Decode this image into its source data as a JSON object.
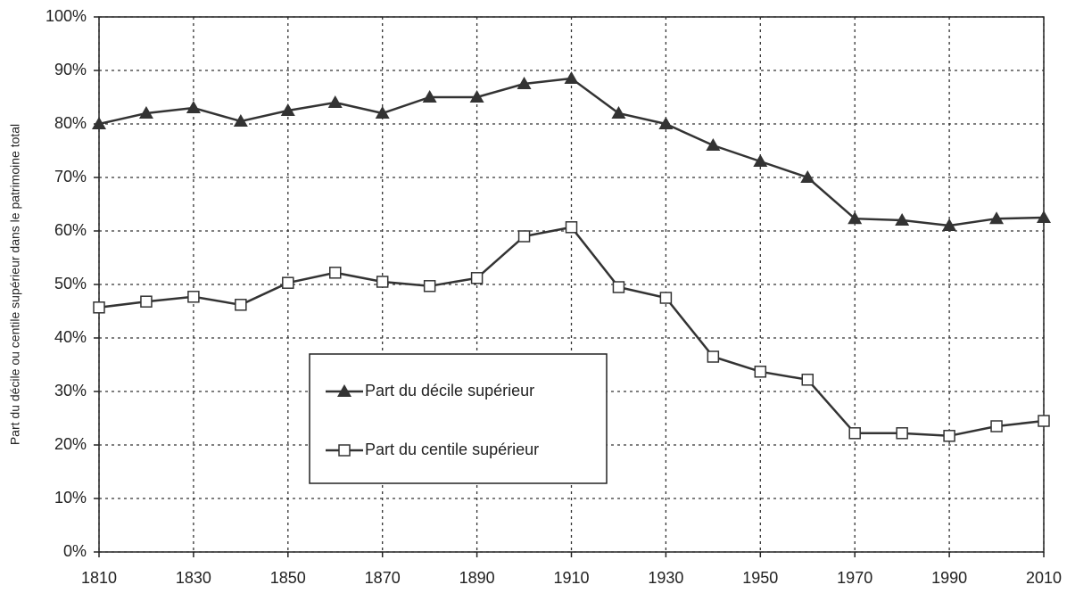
{
  "chart_data": {
    "type": "line",
    "ylabel": "Part du décile ou centile supérieur dans le patrimoine total",
    "x": [
      1810,
      1820,
      1830,
      1840,
      1850,
      1860,
      1870,
      1880,
      1890,
      1900,
      1910,
      1920,
      1930,
      1940,
      1950,
      1960,
      1970,
      1980,
      1990,
      2000,
      2010
    ],
    "series": [
      {
        "name": "Part du décile supérieur",
        "color": "#333333",
        "marker": "triangle",
        "values": [
          80,
          82,
          83,
          80.5,
          82.5,
          84,
          82,
          85,
          85,
          87.5,
          88.5,
          82,
          80,
          76,
          73,
          70,
          62.3,
          62,
          61,
          62.3,
          62.5
        ]
      },
      {
        "name": "Part du centile supérieur",
        "color": "#333333",
        "marker": "square",
        "values": [
          45.7,
          46.8,
          47.7,
          46.2,
          50.3,
          52.2,
          50.5,
          49.7,
          51.2,
          59,
          60.7,
          49.5,
          47.5,
          36.5,
          33.7,
          32.2,
          22.2,
          22.2,
          21.7,
          23.5,
          24.5
        ]
      }
    ],
    "xlim": [
      1810,
      2010
    ],
    "xticks": [
      1810,
      1830,
      1850,
      1870,
      1890,
      1910,
      1930,
      1950,
      1970,
      1990,
      2010
    ],
    "ylim": [
      0,
      100
    ],
    "yticks": [
      {
        "value": 0,
        "label": "0%"
      },
      {
        "value": 10,
        "label": "10%"
      },
      {
        "value": 20,
        "label": "20%"
      },
      {
        "value": 30,
        "label": "30%"
      },
      {
        "value": 40,
        "label": "40%"
      },
      {
        "value": 50,
        "label": "50%"
      },
      {
        "value": 60,
        "label": "60%"
      },
      {
        "value": 70,
        "label": "70%"
      },
      {
        "value": 80,
        "label": "80%"
      },
      {
        "value": 90,
        "label": "90%"
      },
      {
        "value": 100,
        "label": "100%"
      }
    ],
    "grid": true,
    "legend": "lower-center"
  }
}
